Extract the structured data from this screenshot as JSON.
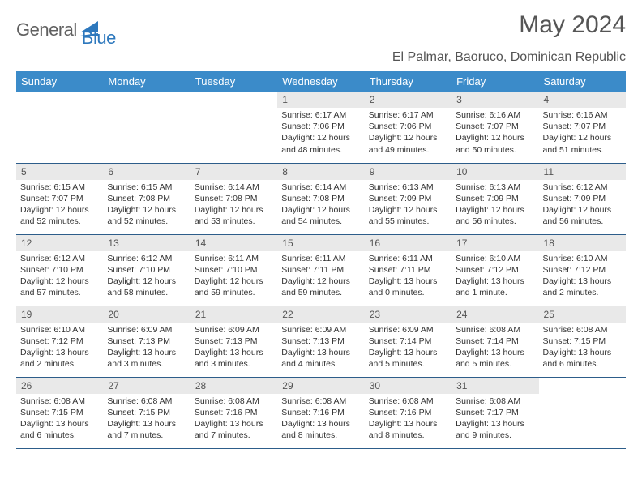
{
  "logo": {
    "text1": "General",
    "text2": "Blue"
  },
  "title": "May 2024",
  "location": "El Palmar, Baoruco, Dominican Republic",
  "weekday_header_bg": "#3b8bc9",
  "weekdays": [
    "Sunday",
    "Monday",
    "Tuesday",
    "Wednesday",
    "Thursday",
    "Friday",
    "Saturday"
  ],
  "weeks": [
    [
      null,
      null,
      null,
      {
        "d": "1",
        "sr": "6:17 AM",
        "ss": "7:06 PM",
        "dl": "12 hours and 48 minutes."
      },
      {
        "d": "2",
        "sr": "6:17 AM",
        "ss": "7:06 PM",
        "dl": "12 hours and 49 minutes."
      },
      {
        "d": "3",
        "sr": "6:16 AM",
        "ss": "7:07 PM",
        "dl": "12 hours and 50 minutes."
      },
      {
        "d": "4",
        "sr": "6:16 AM",
        "ss": "7:07 PM",
        "dl": "12 hours and 51 minutes."
      }
    ],
    [
      {
        "d": "5",
        "sr": "6:15 AM",
        "ss": "7:07 PM",
        "dl": "12 hours and 52 minutes."
      },
      {
        "d": "6",
        "sr": "6:15 AM",
        "ss": "7:08 PM",
        "dl": "12 hours and 52 minutes."
      },
      {
        "d": "7",
        "sr": "6:14 AM",
        "ss": "7:08 PM",
        "dl": "12 hours and 53 minutes."
      },
      {
        "d": "8",
        "sr": "6:14 AM",
        "ss": "7:08 PM",
        "dl": "12 hours and 54 minutes."
      },
      {
        "d": "9",
        "sr": "6:13 AM",
        "ss": "7:09 PM",
        "dl": "12 hours and 55 minutes."
      },
      {
        "d": "10",
        "sr": "6:13 AM",
        "ss": "7:09 PM",
        "dl": "12 hours and 56 minutes."
      },
      {
        "d": "11",
        "sr": "6:12 AM",
        "ss": "7:09 PM",
        "dl": "12 hours and 56 minutes."
      }
    ],
    [
      {
        "d": "12",
        "sr": "6:12 AM",
        "ss": "7:10 PM",
        "dl": "12 hours and 57 minutes."
      },
      {
        "d": "13",
        "sr": "6:12 AM",
        "ss": "7:10 PM",
        "dl": "12 hours and 58 minutes."
      },
      {
        "d": "14",
        "sr": "6:11 AM",
        "ss": "7:10 PM",
        "dl": "12 hours and 59 minutes."
      },
      {
        "d": "15",
        "sr": "6:11 AM",
        "ss": "7:11 PM",
        "dl": "12 hours and 59 minutes."
      },
      {
        "d": "16",
        "sr": "6:11 AM",
        "ss": "7:11 PM",
        "dl": "13 hours and 0 minutes."
      },
      {
        "d": "17",
        "sr": "6:10 AM",
        "ss": "7:12 PM",
        "dl": "13 hours and 1 minute."
      },
      {
        "d": "18",
        "sr": "6:10 AM",
        "ss": "7:12 PM",
        "dl": "13 hours and 2 minutes."
      }
    ],
    [
      {
        "d": "19",
        "sr": "6:10 AM",
        "ss": "7:12 PM",
        "dl": "13 hours and 2 minutes."
      },
      {
        "d": "20",
        "sr": "6:09 AM",
        "ss": "7:13 PM",
        "dl": "13 hours and 3 minutes."
      },
      {
        "d": "21",
        "sr": "6:09 AM",
        "ss": "7:13 PM",
        "dl": "13 hours and 3 minutes."
      },
      {
        "d": "22",
        "sr": "6:09 AM",
        "ss": "7:13 PM",
        "dl": "13 hours and 4 minutes."
      },
      {
        "d": "23",
        "sr": "6:09 AM",
        "ss": "7:14 PM",
        "dl": "13 hours and 5 minutes."
      },
      {
        "d": "24",
        "sr": "6:08 AM",
        "ss": "7:14 PM",
        "dl": "13 hours and 5 minutes."
      },
      {
        "d": "25",
        "sr": "6:08 AM",
        "ss": "7:15 PM",
        "dl": "13 hours and 6 minutes."
      }
    ],
    [
      {
        "d": "26",
        "sr": "6:08 AM",
        "ss": "7:15 PM",
        "dl": "13 hours and 6 minutes."
      },
      {
        "d": "27",
        "sr": "6:08 AM",
        "ss": "7:15 PM",
        "dl": "13 hours and 7 minutes."
      },
      {
        "d": "28",
        "sr": "6:08 AM",
        "ss": "7:16 PM",
        "dl": "13 hours and 7 minutes."
      },
      {
        "d": "29",
        "sr": "6:08 AM",
        "ss": "7:16 PM",
        "dl": "13 hours and 8 minutes."
      },
      {
        "d": "30",
        "sr": "6:08 AM",
        "ss": "7:16 PM",
        "dl": "13 hours and 8 minutes."
      },
      {
        "d": "31",
        "sr": "6:08 AM",
        "ss": "7:17 PM",
        "dl": "13 hours and 9 minutes."
      },
      null
    ]
  ],
  "labels": {
    "sunrise": "Sunrise:",
    "sunset": "Sunset:",
    "daylight": "Daylight:"
  }
}
